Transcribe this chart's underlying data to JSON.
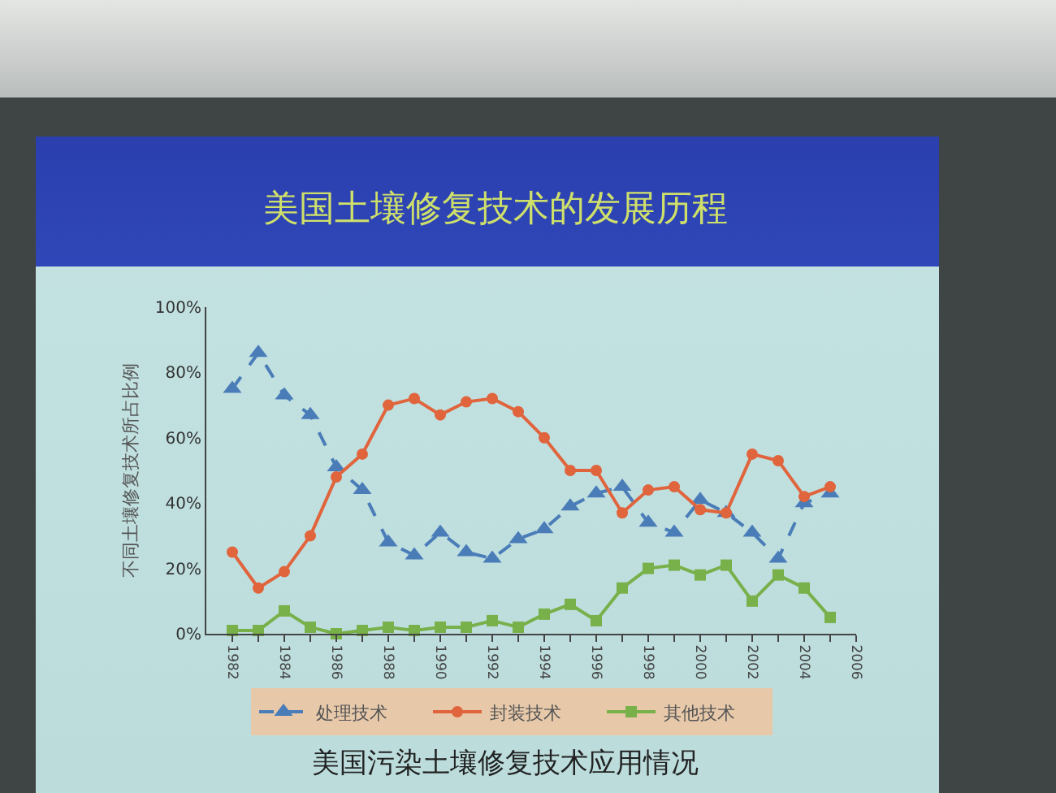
{
  "chart_data": {
    "type": "line",
    "title": "美国土壤修复技术的发展历程",
    "ylabel": "不同土壤修复技术所占比例",
    "annotations": [
      "美国污染土壤修复技术应用情况"
    ],
    "x": [
      1982,
      1983,
      1984,
      1985,
      1986,
      1987,
      1988,
      1989,
      1990,
      1991,
      1992,
      1993,
      1994,
      1995,
      1996,
      1997,
      1998,
      1999,
      2000,
      2001,
      2002,
      2003,
      2004,
      2005
    ],
    "xlim": [
      1981,
      2006
    ],
    "xticks": [
      1982,
      {
        "value": 1983,
        "label": null
      },
      1984,
      {
        "value": 1985,
        "label": null
      },
      1986,
      {
        "value": 1987,
        "label": null
      },
      1988,
      {
        "value": 1989,
        "label": null
      },
      1990,
      {
        "value": 1991,
        "label": null
      },
      1992,
      {
        "value": 1993,
        "label": null
      },
      1994,
      {
        "value": 1995,
        "label": null
      },
      1996,
      {
        "value": 1997,
        "label": null
      },
      1998,
      {
        "value": 1999,
        "label": null
      },
      2000,
      {
        "value": 2001,
        "label": null
      },
      2002,
      {
        "value": 2003,
        "label": null
      },
      2004,
      {
        "value": 2005,
        "label": null
      },
      2006
    ],
    "ylim": [
      0,
      100
    ],
    "yticks": [
      {
        "value": 0,
        "label": "0%"
      },
      {
        "value": 20,
        "label": "20%"
      },
      {
        "value": 40,
        "label": "40%"
      },
      {
        "value": 60,
        "label": "60%"
      },
      {
        "value": 80,
        "label": "80%"
      },
      {
        "value": 100,
        "label": "100%"
      }
    ],
    "legend": "bottom",
    "series": [
      {
        "name": "处理技术",
        "color": "#4a7db8",
        "marker": "triangle",
        "line_style": "dashed",
        "values": [
          75,
          86,
          73,
          67,
          51,
          44,
          28,
          24,
          31,
          25,
          23,
          29,
          32,
          39,
          43,
          45,
          34,
          31,
          41,
          37,
          31,
          23,
          40,
          43
        ]
      },
      {
        "name": "封装技术",
        "color": "#e0643c",
        "marker": "circle",
        "line_style": "solid",
        "values": [
          25,
          14,
          19,
          30,
          48,
          55,
          70,
          72,
          67,
          71,
          72,
          68,
          60,
          50,
          50,
          37,
          44,
          45,
          38,
          37,
          55,
          53,
          42,
          45
        ]
      },
      {
        "name": "其他技术",
        "color": "#78b04a",
        "marker": "square",
        "line_style": "solid",
        "values": [
          1,
          1,
          7,
          2,
          0,
          1,
          2,
          1,
          2,
          2,
          4,
          2,
          6,
          9,
          4,
          14,
          20,
          21,
          18,
          21,
          10,
          18,
          14,
          5
        ]
      }
    ]
  }
}
